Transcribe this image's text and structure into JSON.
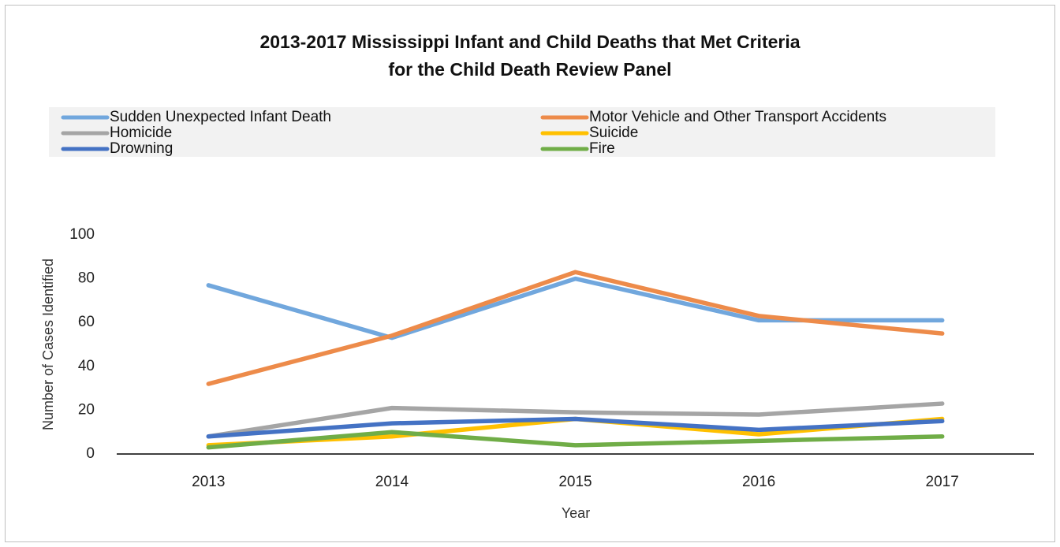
{
  "chart_data": {
    "type": "line",
    "title": [
      "2013-2017 Mississippi Infant and Child Deaths that Met Criteria",
      "for the Child Death Review Panel"
    ],
    "x_label": "Year",
    "y_label": "Number of Cases Identified",
    "categories": [
      "2013",
      "2014",
      "2015",
      "2016",
      "2017"
    ],
    "series": [
      {
        "name": "Sudden Unexpected Infant Death",
        "color": "#71a7dd",
        "values": [
          77,
          53,
          80,
          61,
          61
        ]
      },
      {
        "name": "Motor Vehicle and Other Transport Accidents",
        "color": "#ed8b4a",
        "values": [
          32,
          54,
          83,
          63,
          55
        ]
      },
      {
        "name": "Homicide",
        "color": "#a5a5a5",
        "values": [
          8,
          21,
          19,
          18,
          23
        ]
      },
      {
        "name": "Suicide",
        "color": "#ffc000",
        "values": [
          4,
          8,
          16,
          9,
          16
        ]
      },
      {
        "name": "Drowning",
        "color": "#4472c4",
        "values": [
          8,
          14,
          16,
          11,
          15
        ]
      },
      {
        "name": "Fire",
        "color": "#70ad47",
        "values": [
          3,
          10,
          4,
          6,
          8
        ]
      }
    ],
    "ylim": [
      0,
      100
    ],
    "yticks": [
      0,
      20,
      40,
      60,
      80,
      100
    ],
    "grid": false,
    "legend": "top"
  }
}
